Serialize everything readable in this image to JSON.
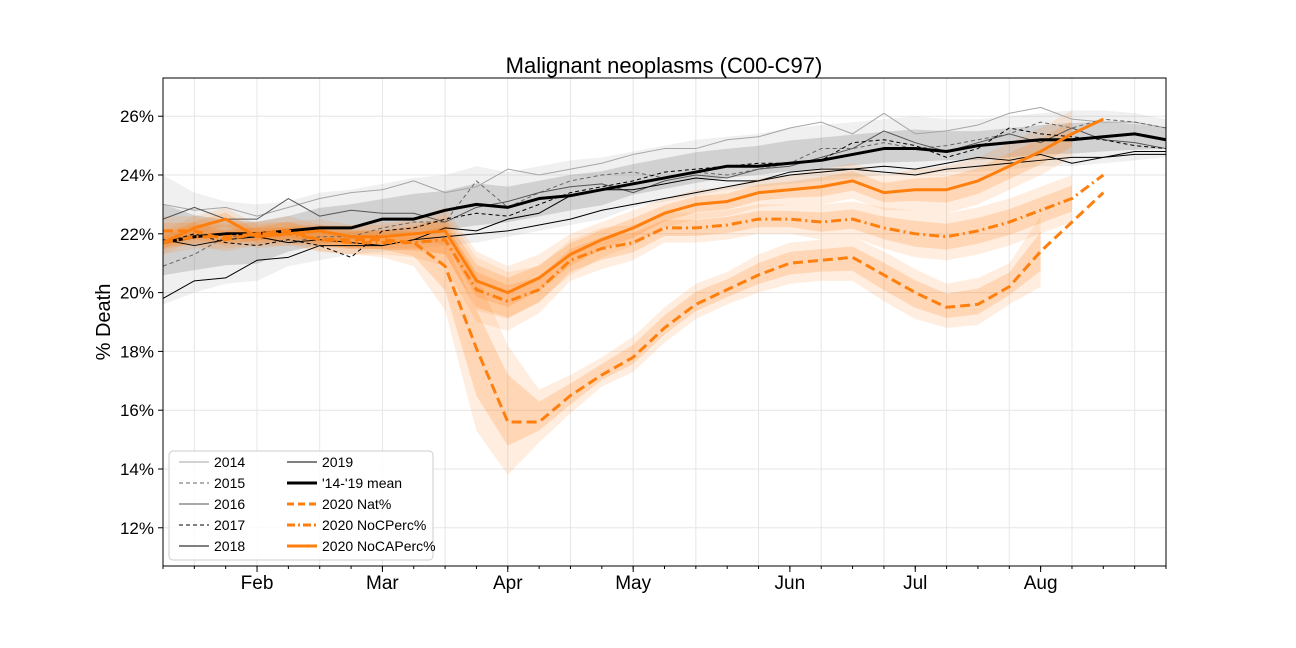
{
  "chart_data": {
    "type": "line",
    "title": "Malignant neoplasms (C00-C97)",
    "xlabel": "",
    "ylabel": "% Death",
    "y_tick_labels": [
      "12%",
      "14%",
      "16%",
      "18%",
      "20%",
      "22%",
      "24%",
      "26%"
    ],
    "y_ticks": [
      12,
      14,
      16,
      18,
      20,
      22,
      24,
      26
    ],
    "ylim": [
      10.7,
      27.3
    ],
    "x_unit": "week",
    "xlim": [
      1,
      33
    ],
    "x_tick_labels": [
      "Feb",
      "Mar",
      "Apr",
      "May",
      "Jun",
      "Jul",
      "Aug"
    ],
    "x_tick_weeks": [
      4,
      8,
      12,
      16,
      21,
      25,
      29
    ],
    "grid": true,
    "legend_position": "lower-left",
    "x": [
      1,
      2,
      3,
      4,
      5,
      6,
      7,
      8,
      9,
      10,
      11,
      12,
      13,
      14,
      15,
      16,
      17,
      18,
      19,
      20,
      21,
      22,
      23,
      24,
      25,
      26,
      27,
      28,
      29,
      30,
      31,
      32,
      33
    ],
    "band_2014_2019": {
      "lower": [
        19.6,
        20.0,
        20.3,
        20.4,
        20.9,
        21.1,
        21.3,
        21.4,
        21.5,
        21.6,
        21.7,
        21.9,
        22.1,
        22.3,
        22.5,
        22.9,
        23.1,
        23.3,
        23.5,
        23.6,
        23.7,
        23.8,
        23.9,
        24.0,
        24.0,
        24.1,
        24.1,
        24.2,
        24.3,
        24.3,
        24.4,
        24.5,
        24.6
      ],
      "upper": [
        24.0,
        23.4,
        23.1,
        23.0,
        23.1,
        23.4,
        23.5,
        23.7,
        23.9,
        24.0,
        24.3,
        24.1,
        24.3,
        24.5,
        24.6,
        24.8,
        25.0,
        25.2,
        25.3,
        25.4,
        25.6,
        25.7,
        25.8,
        25.9,
        26.0,
        25.9,
        25.9,
        26.0,
        26.1,
        26.2,
        26.2,
        26.1,
        25.9
      ]
    },
    "series": [
      {
        "name": "2014",
        "style": "thin",
        "color": "#a6a6a6",
        "dash": "",
        "values": [
          23.0,
          22.8,
          22.9,
          22.6,
          22.9,
          23.2,
          23.4,
          23.5,
          23.8,
          23.4,
          23.6,
          24.2,
          24.0,
          24.2,
          24.4,
          24.7,
          24.9,
          24.9,
          25.2,
          25.3,
          25.6,
          25.8,
          25.4,
          26.1,
          25.4,
          25.5,
          25.7,
          26.1,
          26.3,
          25.9,
          25.8,
          25.8,
          25.6
        ]
      },
      {
        "name": "2015",
        "style": "thin",
        "color": "#666666",
        "dash": "4,3",
        "values": [
          20.9,
          21.3,
          21.9,
          21.9,
          21.7,
          21.9,
          21.9,
          22.2,
          22.4,
          22.4,
          23.8,
          22.9,
          23.4,
          23.8,
          24.0,
          24.1,
          23.9,
          24.1,
          24.0,
          24.2,
          24.4,
          24.9,
          24.9,
          25.1,
          24.9,
          25.0,
          25.2,
          25.4,
          25.8,
          25.6,
          25.9,
          25.8,
          25.6
        ]
      },
      {
        "name": "2016",
        "style": "thin",
        "color": "#555555",
        "dash": "",
        "values": [
          22.5,
          22.9,
          22.5,
          22.5,
          23.2,
          22.6,
          22.8,
          22.7,
          22.7,
          22.4,
          22.9,
          23.1,
          23.4,
          23.6,
          23.7,
          23.4,
          23.8,
          24.0,
          23.9,
          24.2,
          24.3,
          24.6,
          24.9,
          25.5,
          25.1,
          24.8,
          25.1,
          25.4,
          25.1,
          25.6,
          25.2,
          25.1,
          24.9
        ]
      },
      {
        "name": "2017",
        "style": "thin",
        "color": "#000000",
        "dash": "4,3",
        "values": [
          21.7,
          22.0,
          21.7,
          21.6,
          21.8,
          21.6,
          21.2,
          22.1,
          22.2,
          22.5,
          22.7,
          22.6,
          23.0,
          23.4,
          23.6,
          23.8,
          24.1,
          24.2,
          24.3,
          24.4,
          24.4,
          24.5,
          25.1,
          25.2,
          25.0,
          24.6,
          24.9,
          25.6,
          25.4,
          25.3,
          25.2,
          25.0,
          24.9
        ]
      },
      {
        "name": "2018",
        "style": "thin",
        "color": "#000000",
        "dash": "",
        "values": [
          19.8,
          20.4,
          20.5,
          21.1,
          21.2,
          21.6,
          21.6,
          21.6,
          21.8,
          22.2,
          22.1,
          22.5,
          22.7,
          23.3,
          23.5,
          23.5,
          23.7,
          23.9,
          23.8,
          23.8,
          24.1,
          24.2,
          24.2,
          24.3,
          24.2,
          24.4,
          24.6,
          24.5,
          24.7,
          24.4,
          24.6,
          24.8,
          24.8
        ]
      },
      {
        "name": "2019",
        "style": "thin",
        "color": "#000000",
        "dash": "",
        "values": [
          21.8,
          21.6,
          21.8,
          21.9,
          21.7,
          21.8,
          21.7,
          21.6,
          21.8,
          21.9,
          22.0,
          22.1,
          22.3,
          22.5,
          22.8,
          23.0,
          23.2,
          23.4,
          23.6,
          23.8,
          24.0,
          24.1,
          24.2,
          24.1,
          24.0,
          24.2,
          24.3,
          24.4,
          24.5,
          24.6,
          24.6,
          24.7,
          24.7
        ]
      },
      {
        "name": "'14-'19 mean",
        "style": "mean",
        "color": "#000000",
        "dash": "",
        "values": [
          21.7,
          21.9,
          22.0,
          22.0,
          22.1,
          22.2,
          22.2,
          22.5,
          22.5,
          22.8,
          23.0,
          22.9,
          23.2,
          23.3,
          23.5,
          23.7,
          23.9,
          24.1,
          24.3,
          24.3,
          24.4,
          24.5,
          24.7,
          24.9,
          24.9,
          24.8,
          25.0,
          25.1,
          25.2,
          25.2,
          25.3,
          25.4,
          25.2
        ]
      },
      {
        "name": "2020 Nat%",
        "style": "orange",
        "color": "#ff7f0e",
        "dash": "10,5",
        "x": [
          1,
          2,
          3,
          4,
          5,
          6,
          7,
          8,
          9,
          10,
          11,
          12,
          13,
          14,
          15,
          16,
          17,
          18,
          19,
          20,
          21,
          22,
          23,
          24,
          25,
          26,
          27,
          28,
          29,
          30,
          31
        ],
        "values": [
          22.1,
          22.1,
          21.8,
          22.0,
          22.1,
          21.8,
          21.8,
          21.8,
          21.7,
          20.9,
          18.1,
          15.6,
          15.6,
          16.5,
          17.2,
          17.8,
          18.8,
          19.6,
          20.1,
          20.6,
          21.0,
          21.1,
          21.2,
          20.6,
          20.0,
          19.5,
          19.6,
          20.2,
          21.4,
          null,
          23.4
        ],
        "band_lower": [
          21.6,
          21.6,
          21.4,
          21.6,
          21.7,
          21.4,
          21.3,
          21.2,
          20.9,
          19.4,
          15.3,
          13.8,
          14.9,
          15.9,
          16.8,
          17.3,
          18.3,
          19.1,
          19.6,
          20.0,
          20.3,
          20.4,
          20.4,
          19.7,
          19.1,
          18.8,
          18.9,
          19.6,
          20.2,
          null,
          null
        ],
        "band_upper": [
          22.6,
          22.6,
          22.3,
          22.4,
          22.6,
          22.3,
          22.3,
          22.4,
          22.4,
          22.4,
          20.6,
          18.2,
          16.7,
          17.2,
          17.8,
          18.5,
          19.5,
          20.3,
          20.7,
          21.3,
          21.7,
          21.8,
          21.9,
          21.4,
          20.8,
          20.3,
          20.5,
          21.0,
          22.6,
          null,
          null
        ]
      },
      {
        "name": "2020 NoCPerc%",
        "style": "orange",
        "color": "#ff7f0e",
        "dash": "10,4,2,4",
        "x": [
          1,
          2,
          3,
          4,
          5,
          6,
          7,
          8,
          9,
          10,
          11,
          12,
          13,
          14,
          15,
          16,
          17,
          18,
          19,
          20,
          21,
          22,
          23,
          24,
          25,
          26,
          27,
          28,
          29,
          30,
          31
        ],
        "values": [
          21.7,
          21.9,
          21.9,
          22.0,
          22.0,
          21.8,
          21.7,
          21.7,
          21.7,
          21.8,
          20.1,
          19.7,
          20.1,
          21.1,
          21.5,
          21.7,
          22.2,
          22.2,
          22.3,
          22.5,
          22.5,
          22.4,
          22.5,
          22.2,
          22.0,
          21.9,
          22.1,
          22.4,
          22.8,
          23.2,
          24.0
        ],
        "band_lower": [
          21.3,
          21.5,
          21.5,
          21.6,
          21.6,
          21.4,
          21.3,
          21.3,
          21.2,
          20.9,
          19.0,
          18.7,
          19.3,
          20.4,
          20.8,
          21.1,
          21.7,
          21.7,
          21.8,
          22.0,
          22.0,
          21.8,
          21.9,
          21.5,
          21.2,
          21.1,
          21.3,
          21.6,
          22.0,
          22.4,
          null
        ],
        "band_upper": [
          22.1,
          22.3,
          22.3,
          22.4,
          22.4,
          22.2,
          22.1,
          22.1,
          22.2,
          22.7,
          21.2,
          20.7,
          20.9,
          21.8,
          22.2,
          22.3,
          22.7,
          22.7,
          22.8,
          23.0,
          23.0,
          23.0,
          23.1,
          22.9,
          22.8,
          22.7,
          22.9,
          23.2,
          23.6,
          24.0,
          null
        ]
      },
      {
        "name": "2020 NoCAPerc%",
        "style": "orange",
        "color": "#ff7f0e",
        "dash": "",
        "x": [
          1,
          2,
          3,
          4,
          5,
          6,
          7,
          8,
          9,
          10,
          11,
          12,
          13,
          14,
          15,
          16,
          17,
          18,
          19,
          20,
          21,
          22,
          23,
          24,
          25,
          26,
          27,
          28,
          29,
          30,
          31
        ],
        "values": [
          21.7,
          22.2,
          22.5,
          21.9,
          22.0,
          22.1,
          21.9,
          21.9,
          22.0,
          22.1,
          20.4,
          20.0,
          20.5,
          21.3,
          21.8,
          22.2,
          22.7,
          23.0,
          23.1,
          23.4,
          23.5,
          23.6,
          23.8,
          23.4,
          23.5,
          23.5,
          23.8,
          24.3,
          24.8,
          25.4,
          25.9
        ],
        "band_lower": [
          21.3,
          21.8,
          22.1,
          21.5,
          21.6,
          21.7,
          21.5,
          21.5,
          21.5,
          21.3,
          19.4,
          19.1,
          19.7,
          20.6,
          21.2,
          21.6,
          22.2,
          22.5,
          22.6,
          22.9,
          23.0,
          23.0,
          23.2,
          22.8,
          22.8,
          22.7,
          23.0,
          23.5,
          24.0,
          24.6,
          null
        ],
        "band_upper": [
          22.1,
          22.6,
          22.9,
          22.3,
          22.4,
          22.5,
          22.3,
          22.3,
          22.5,
          22.9,
          21.4,
          20.9,
          21.3,
          22.0,
          22.4,
          22.8,
          23.2,
          23.5,
          23.6,
          23.9,
          24.0,
          24.2,
          24.4,
          24.0,
          24.2,
          24.3,
          24.6,
          25.1,
          25.6,
          26.2,
          null
        ]
      }
    ],
    "colors": {
      "orange": "#ff7f0e",
      "mean": "#000000",
      "band_gray": "#808080",
      "grid": "#e6e6e6"
    }
  }
}
